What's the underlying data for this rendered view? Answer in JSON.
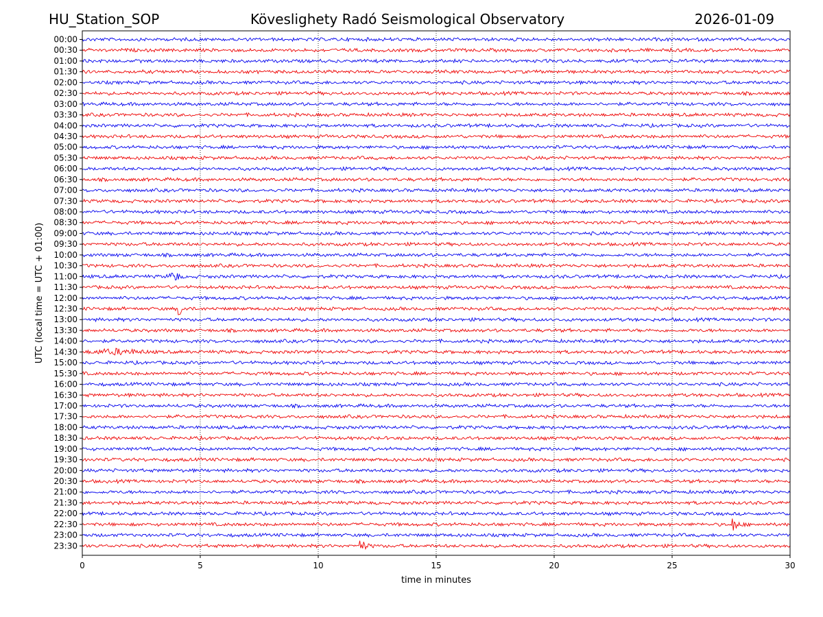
{
  "header": {
    "station": "HU_Station_SOP",
    "observatory": "Köveslighety Radó Seismological Observatory",
    "date": "2026-01-09"
  },
  "chart_data": {
    "type": "line",
    "title": "Köveslighety Radó Seismological Observatory",
    "xlabel": "time in minutes",
    "ylabel": "UTC (local time = UTC + 01:00)",
    "xlim": [
      0,
      30
    ],
    "x_ticks": [
      0,
      5,
      10,
      15,
      20,
      25,
      30
    ],
    "grid": "vertical dotted lines at each x tick",
    "rows": [
      "00:00",
      "00:30",
      "01:00",
      "01:30",
      "02:00",
      "02:30",
      "03:00",
      "03:30",
      "04:00",
      "04:30",
      "05:00",
      "05:30",
      "06:00",
      "06:30",
      "07:00",
      "07:30",
      "08:00",
      "08:30",
      "09:00",
      "09:30",
      "10:00",
      "10:30",
      "11:00",
      "11:30",
      "12:00",
      "12:30",
      "13:00",
      "13:30",
      "14:00",
      "14:30",
      "15:00",
      "15:30",
      "16:00",
      "16:30",
      "17:00",
      "17:30",
      "18:00",
      "18:30",
      "19:00",
      "19:30",
      "20:00",
      "20:30",
      "21:00",
      "21:30",
      "22:00",
      "22:30",
      "23:00",
      "23:30"
    ],
    "trace_colors": [
      "#0000ee",
      "#ee0000"
    ],
    "events": [
      {
        "row": "11:00",
        "minute": 3.9,
        "note": "burst"
      },
      {
        "row": "12:30",
        "minute": 4.1,
        "note": "spike"
      },
      {
        "row": "14:30",
        "minute": 1.5,
        "note": "noise burst"
      },
      {
        "row": "22:30",
        "minute": 27.6,
        "note": "spike"
      },
      {
        "row": "23:30",
        "minute": 11.8,
        "note": "spike"
      }
    ]
  }
}
